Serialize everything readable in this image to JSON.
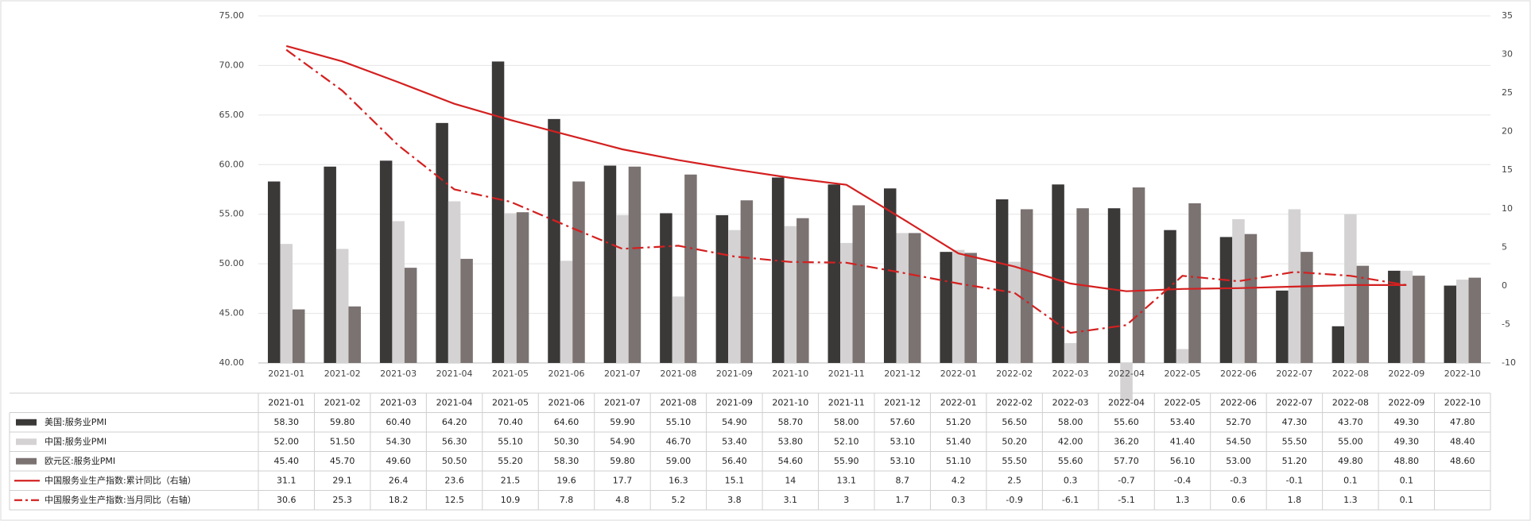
{
  "chart_data": {
    "type": "bar",
    "categories": [
      "2021-01",
      "2021-02",
      "2021-03",
      "2021-04",
      "2021-05",
      "2021-06",
      "2021-07",
      "2021-08",
      "2021-09",
      "2021-10",
      "2021-11",
      "2021-12",
      "2022-01",
      "2022-02",
      "2022-03",
      "2022-04",
      "2022-05",
      "2022-06",
      "2022-07",
      "2022-08",
      "2022-09",
      "2022-10"
    ],
    "series": [
      {
        "name": "美国:服务业PMI",
        "type": "bar",
        "color": "#3b3838",
        "values": [
          58.3,
          59.8,
          60.4,
          64.2,
          70.4,
          64.6,
          59.9,
          55.1,
          54.9,
          58.7,
          58,
          57.6,
          51.2,
          56.5,
          58,
          55.6,
          53.4,
          52.7,
          47.3,
          43.7,
          49.3,
          47.8
        ],
        "value_labels": [
          "58.30",
          "59.80",
          "60.40",
          "64.20",
          "70.40",
          "64.60",
          "59.90",
          "55.10",
          "54.90",
          "58.70",
          "58.00",
          "57.60",
          "51.20",
          "56.50",
          "58.00",
          "55.60",
          "53.40",
          "52.70",
          "47.30",
          "43.70",
          "49.30",
          "47.80"
        ]
      },
      {
        "name": "中国:服务业PMI",
        "type": "bar",
        "color": "#d4d2d2",
        "values": [
          52,
          51.5,
          54.3,
          56.3,
          55.1,
          50.3,
          54.9,
          46.7,
          53.4,
          53.8,
          52.1,
          53.1,
          51.4,
          50.2,
          42,
          36.2,
          41.4,
          54.5,
          55.5,
          55,
          49.3,
          48.4
        ],
        "value_labels": [
          "52.00",
          "51.50",
          "54.30",
          "56.30",
          "55.10",
          "50.30",
          "54.90",
          "46.70",
          "53.40",
          "53.80",
          "52.10",
          "53.10",
          "51.40",
          "50.20",
          "42.00",
          "36.20",
          "41.40",
          "54.50",
          "55.50",
          "55.00",
          "49.30",
          "48.40"
        ]
      },
      {
        "name": "欧元区:服务业PMI",
        "type": "bar",
        "color": "#7b7272",
        "values": [
          45.4,
          45.7,
          49.6,
          50.5,
          55.2,
          58.3,
          59.8,
          59,
          56.4,
          54.6,
          55.9,
          53.1,
          51.1,
          55.5,
          55.6,
          57.7,
          56.1,
          53,
          51.2,
          49.8,
          48.8,
          48.6
        ],
        "value_labels": [
          "45.40",
          "45.70",
          "49.60",
          "50.50",
          "55.20",
          "58.30",
          "59.80",
          "59.00",
          "56.40",
          "54.60",
          "55.90",
          "53.10",
          "51.10",
          "55.50",
          "55.60",
          "57.70",
          "56.10",
          "53.00",
          "51.20",
          "49.80",
          "48.80",
          "48.60"
        ]
      },
      {
        "name": "中国服务业生产指数:累计同比（右轴）",
        "type": "line",
        "axis": "y2",
        "color": "#d42020",
        "dash": "solid",
        "values": [
          31.1,
          29.1,
          26.4,
          23.6,
          21.5,
          19.6,
          17.7,
          16.3,
          15.1,
          14,
          13.1,
          8.7,
          4.2,
          2.5,
          0.3,
          -0.7,
          -0.4,
          -0.3,
          -0.1,
          0.1,
          0.1,
          null
        ]
      },
      {
        "name": "中国服务业生产指数:当月同比（右轴）",
        "type": "line",
        "axis": "y2",
        "color": "#d42020",
        "dash": "dashdot",
        "values": [
          30.6,
          25.3,
          18.2,
          12.5,
          10.9,
          7.8,
          4.8,
          5.2,
          3.8,
          3.1,
          3,
          1.7,
          0.3,
          -0.9,
          -6.1,
          -5.1,
          1.3,
          0.6,
          1.8,
          1.3,
          0.1,
          null
        ]
      }
    ],
    "ylim": [
      40,
      75
    ],
    "yticks": [
      {
        "value": 40,
        "label": "40.00"
      },
      {
        "value": 45,
        "label": "45.00"
      },
      {
        "value": 50,
        "label": "50.00"
      },
      {
        "value": 55,
        "label": "55.00"
      },
      {
        "value": 60,
        "label": "60.00"
      },
      {
        "value": 65,
        "label": "65.00"
      },
      {
        "value": 70,
        "label": "70.00"
      },
      {
        "value": 75,
        "label": "75.00"
      }
    ],
    "y2lim": [
      -10,
      35
    ],
    "y2ticks": [
      -10,
      -5,
      0,
      5,
      10,
      15,
      20,
      25,
      30,
      35
    ],
    "grid": true
  }
}
